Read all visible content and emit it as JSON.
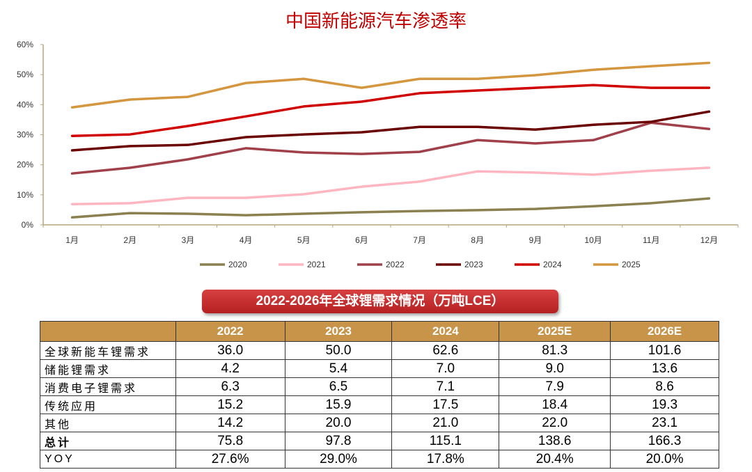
{
  "chart_data": {
    "type": "line",
    "title": "中国新能源汽车渗透率",
    "categories": [
      "1月",
      "2月",
      "3月",
      "4月",
      "5月",
      "6月",
      "7月",
      "8月",
      "9月",
      "10月",
      "11月",
      "12月"
    ],
    "yticks": [
      "0%",
      "10%",
      "20%",
      "30%",
      "40%",
      "50%",
      "60%"
    ],
    "ylim": [
      0,
      60
    ],
    "legend_position": "bottom",
    "series": [
      {
        "name": "2020",
        "color": "#8b8050",
        "values": [
          2.5,
          3.9,
          3.7,
          3.2,
          3.7,
          4.2,
          4.6,
          4.9,
          5.3,
          6.2,
          7.2,
          8.8
        ]
      },
      {
        "name": "2021",
        "color": "#ffb6c1",
        "values": [
          6.9,
          7.2,
          9.0,
          9.0,
          10.2,
          12.7,
          14.4,
          17.8,
          17.4,
          16.7,
          18.0,
          19.0
        ]
      },
      {
        "name": "2022",
        "color": "#a0404a",
        "values": [
          17.1,
          19.0,
          21.8,
          25.5,
          24.1,
          23.6,
          24.3,
          28.2,
          27.1,
          28.2,
          34.0,
          31.9
        ]
      },
      {
        "name": "2023",
        "color": "#6a0000",
        "values": [
          24.8,
          26.2,
          26.6,
          29.2,
          30.1,
          30.8,
          32.6,
          32.6,
          31.7,
          33.3,
          34.3,
          37.7
        ]
      },
      {
        "name": "2024",
        "color": "#d00000",
        "values": [
          29.6,
          30.1,
          32.9,
          36.1,
          39.4,
          41.0,
          43.8,
          44.7,
          45.6,
          46.5,
          45.6,
          45.6
        ]
      },
      {
        "name": "2025",
        "color": "#d4963e",
        "values": [
          39.1,
          41.7,
          42.6,
          47.2,
          48.6,
          45.6,
          48.6,
          48.6,
          49.8,
          51.6,
          52.8,
          53.9
        ]
      }
    ]
  },
  "table": {
    "title": "2022-2026年全球锂需求情况（万吨LCE）",
    "headers": [
      "",
      "2022",
      "2023",
      "2024",
      "2025E",
      "2026E"
    ],
    "rows": [
      {
        "label": "全球新能车锂需求",
        "values": [
          "36.0",
          "50.0",
          "62.6",
          "81.3",
          "101.6"
        ]
      },
      {
        "label": "储能锂需求",
        "values": [
          "4.2",
          "5.4",
          "7.0",
          "9.0",
          "13.6"
        ]
      },
      {
        "label": "消费电子锂需求",
        "values": [
          "6.3",
          "6.5",
          "7.1",
          "7.9",
          "8.6"
        ]
      },
      {
        "label": "传统应用",
        "values": [
          "15.2",
          "15.9",
          "17.5",
          "18.4",
          "19.3"
        ]
      },
      {
        "label": "其他",
        "values": [
          "14.2",
          "20.0",
          "21.0",
          "22.0",
          "23.1"
        ]
      },
      {
        "label": "总计",
        "values": [
          "75.8",
          "97.8",
          "115.1",
          "138.6",
          "166.3"
        ]
      },
      {
        "label": "YOY",
        "values": [
          "27.6%",
          "29.0%",
          "17.8%",
          "20.4%",
          "20.0%"
        ]
      }
    ]
  }
}
